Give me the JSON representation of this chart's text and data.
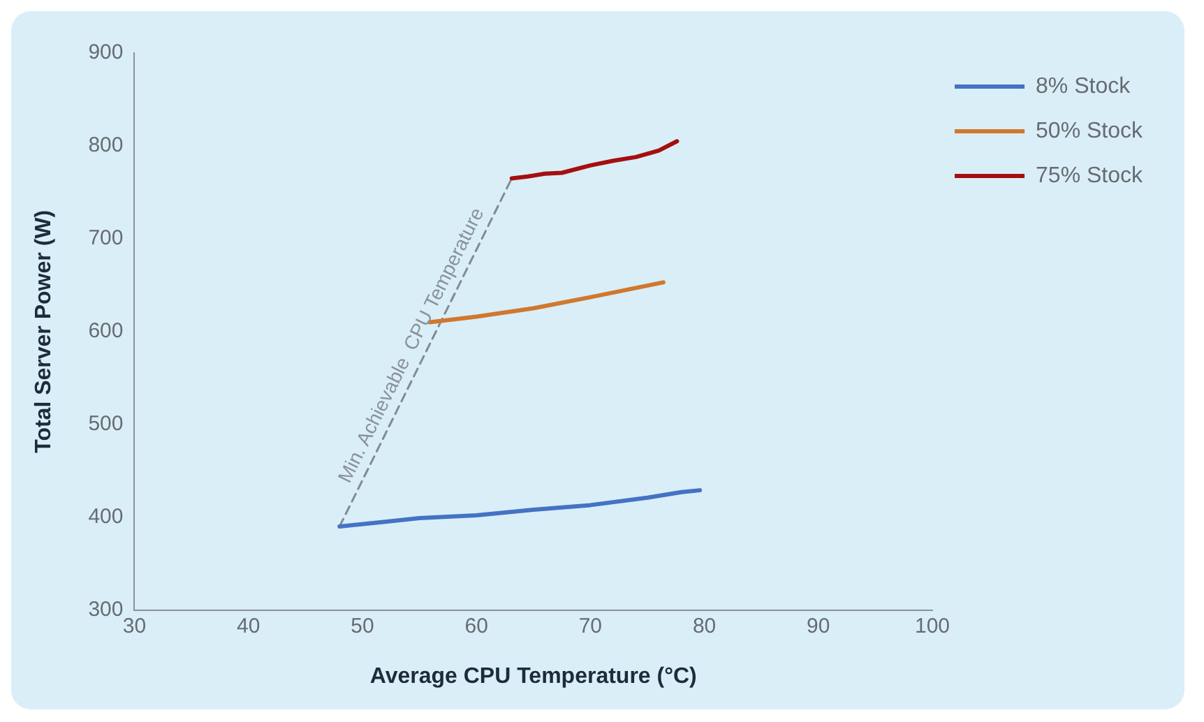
{
  "chart_data": {
    "type": "line",
    "xlabel": "Average CPU Temperature (°C)",
    "ylabel": "Total Server Power (W)",
    "xlim": [
      30,
      100
    ],
    "xticks": [
      30,
      40,
      50,
      60,
      70,
      80,
      90,
      100
    ],
    "ylim": [
      300,
      900
    ],
    "yticks": [
      300,
      400,
      500,
      600,
      700,
      800,
      900
    ],
    "grid": false,
    "legend": "top right",
    "marker": "none",
    "series": [
      {
        "name": "8% Stock",
        "color": "#4472c4",
        "x": [
          48,
          52,
          55,
          60,
          65,
          70,
          75,
          78,
          79.6
        ],
        "values": [
          390,
          395,
          399,
          402,
          408,
          413,
          421,
          427,
          429
        ]
      },
      {
        "name": "50% Stock",
        "color": "#d0782e",
        "x": [
          55.9,
          60,
          65,
          70,
          76.4
        ],
        "values": [
          610,
          616,
          625,
          637,
          653
        ]
      },
      {
        "name": "75% Stock",
        "color": "#a50f0f",
        "x": [
          63.1,
          64.5,
          66,
          67.5,
          70,
          72,
          74,
          76,
          77.6
        ],
        "values": [
          765,
          767,
          770,
          771,
          779,
          784,
          788,
          795,
          805
        ]
      },
      {
        "color": "#7f8c94",
        "line_style": "dashed",
        "x": [
          48,
          63.1
        ],
        "values": [
          390,
          765
        ]
      }
    ],
    "annotations": [
      "Min. Achievable  CPU Temperature"
    ]
  }
}
